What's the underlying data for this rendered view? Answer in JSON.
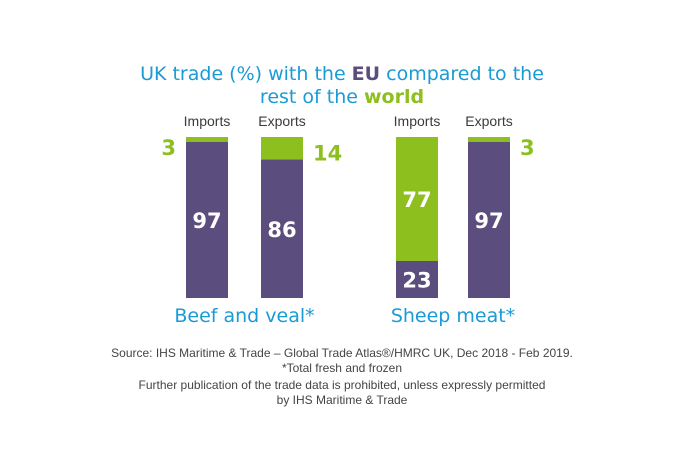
{
  "colors": {
    "eu": "#5b4d7e",
    "world": "#8dbf1f",
    "title": "#1a9ad6",
    "group_label": "#1a9ad6",
    "bar_label_on_bar": "#ffffff"
  },
  "title": {
    "line1_prefix": "UK trade (%) with the ",
    "line1_eu": "EU",
    "line1_suffix": " compared to the",
    "line2_prefix": "rest of the ",
    "line2_world": "world"
  },
  "chart_data": {
    "type": "bar",
    "stacked": true,
    "ylim": [
      0,
      100
    ],
    "grid": false,
    "legend": "none",
    "groups": [
      {
        "name": "Beef and veal*",
        "bars": [
          {
            "category": "Imports",
            "series": {
              "EU": 97,
              "World": 3
            }
          },
          {
            "category": "Exports",
            "series": {
              "EU": 86,
              "World": 14
            }
          }
        ]
      },
      {
        "name": "Sheep meat*",
        "bars": [
          {
            "category": "Imports",
            "series": {
              "EU": 23,
              "World": 77
            }
          },
          {
            "category": "Exports",
            "series": {
              "EU": 97,
              "World": 3
            }
          }
        ]
      }
    ]
  },
  "notes": {
    "source": "Source: IHS Maritime & Trade – Global Trade Atlas®/HMRC UK, Dec 2018 - Feb 2019.",
    "footnote": "*Total fresh and frozen",
    "rights_line1": "Further publication of the trade data is prohibited, unless expressly permitted",
    "rights_line2": "by IHS Maritime & Trade"
  }
}
